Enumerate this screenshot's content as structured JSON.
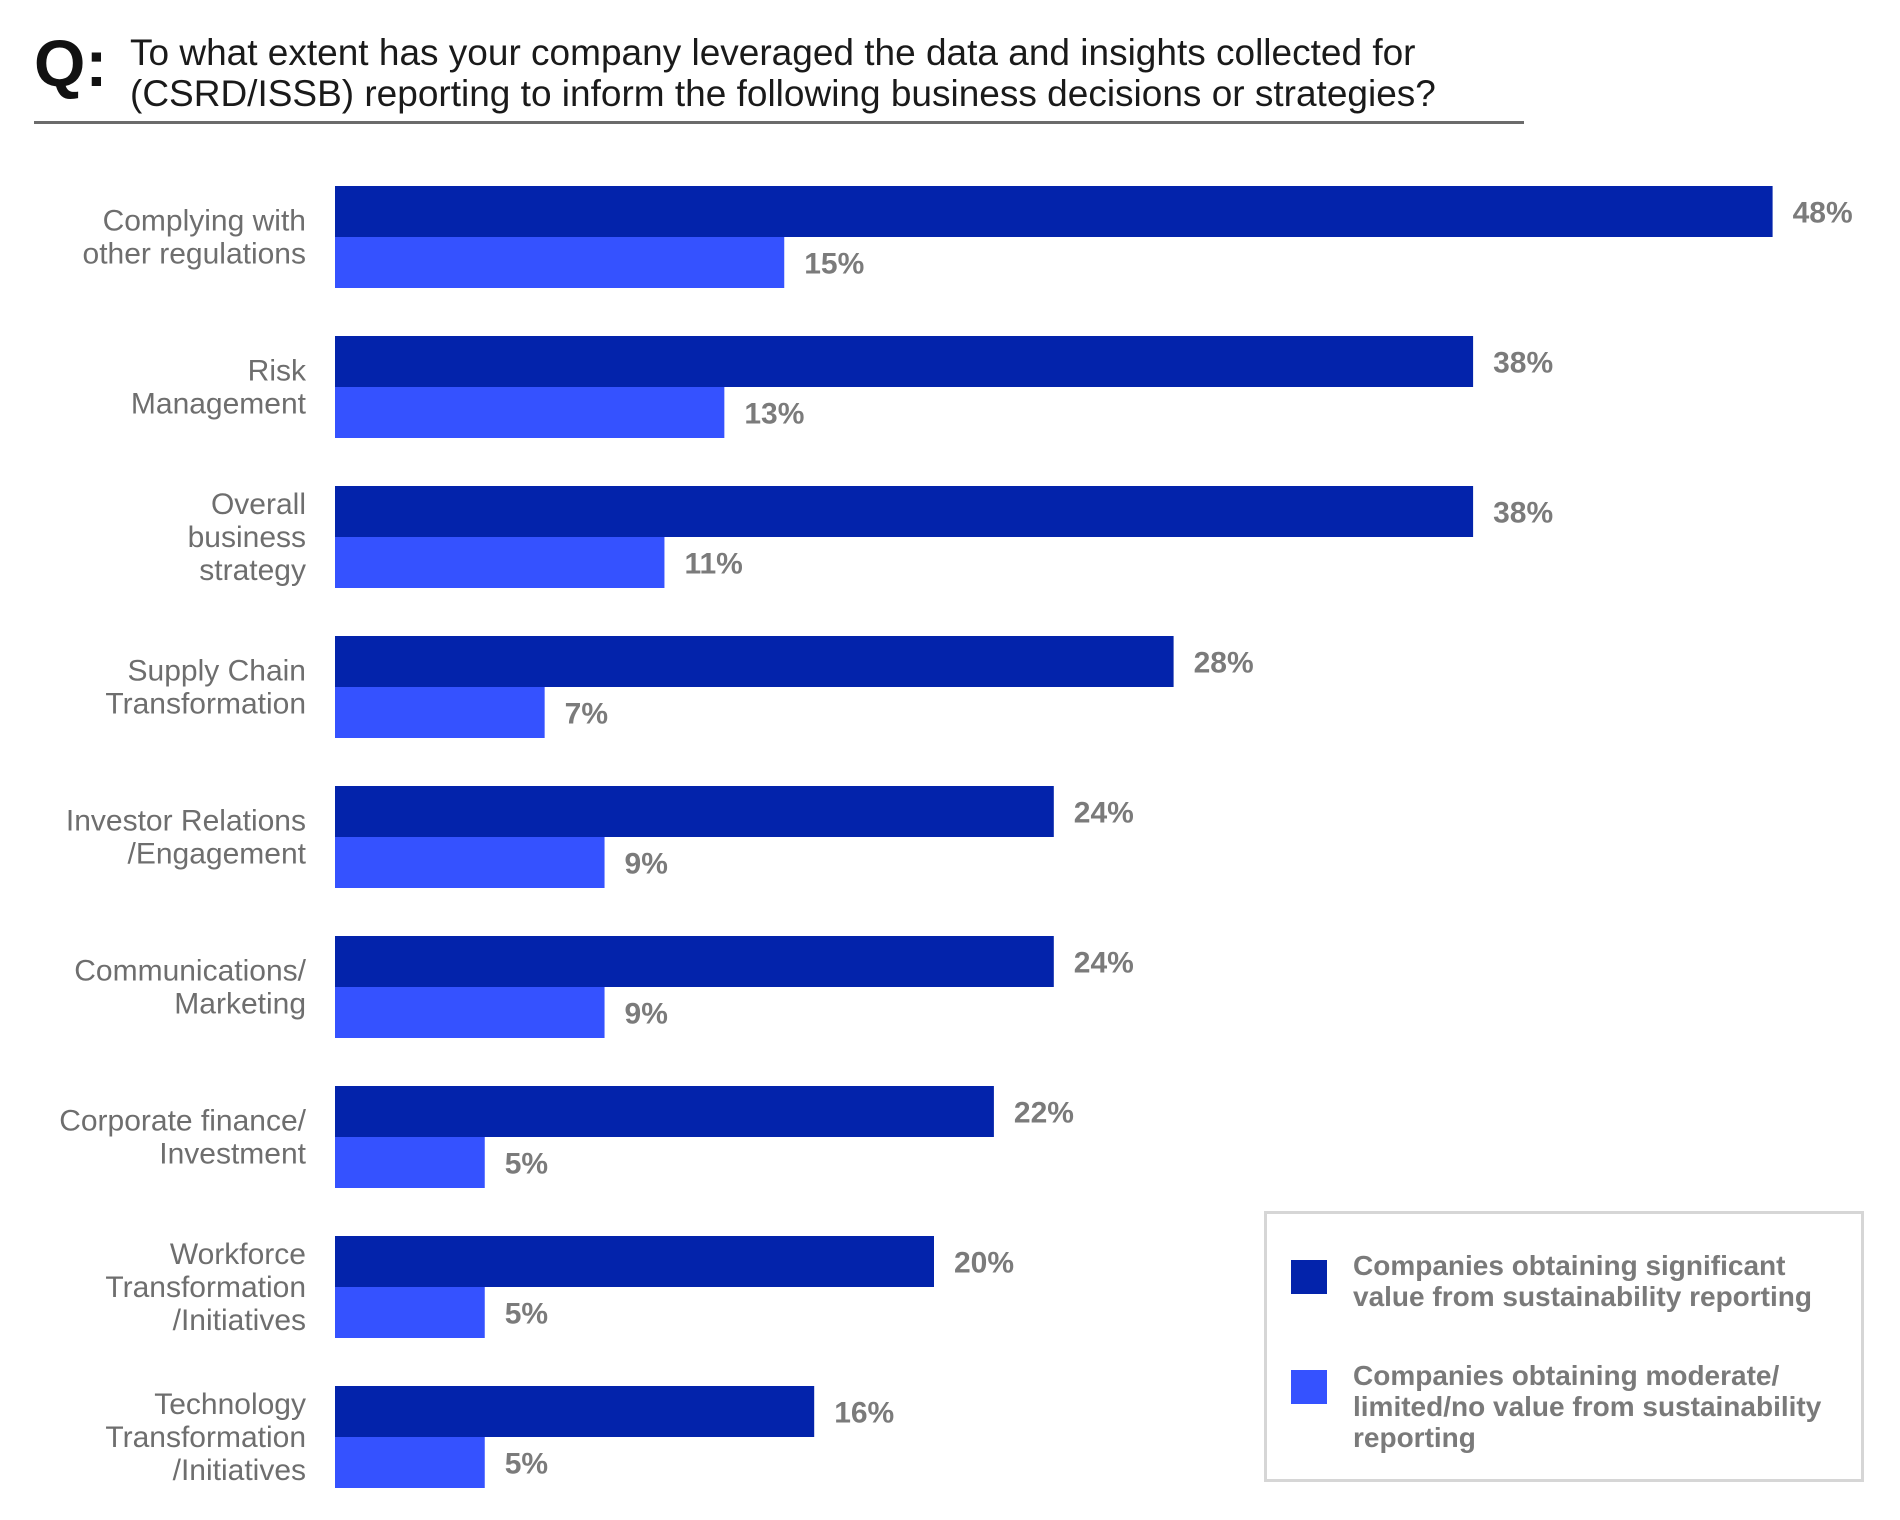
{
  "question": {
    "label": "Q:",
    "text": "To what extent has your company leveraged the data and insights collected for (CSRD/ISSB) reporting to inform the following business decisions or strategies?"
  },
  "colors": {
    "significant": "#0323AB",
    "moderate": "#3552FF",
    "category_text": "#6e6e6e",
    "value_text": "#7b7b7b",
    "rule": "#6b6b6b"
  },
  "chart_data": {
    "type": "bar",
    "orientation": "horizontal",
    "categories": [
      [
        "Complying with",
        "other regulations"
      ],
      [
        "Risk",
        "Management"
      ],
      [
        "Overall",
        "business",
        "strategy"
      ],
      [
        "Supply Chain",
        "Transformation"
      ],
      [
        "Investor Relations",
        "/Engagement"
      ],
      [
        "Communications/",
        "Marketing"
      ],
      [
        "Corporate finance/",
        "Investment"
      ],
      [
        "Workforce",
        "Transformation",
        "/Initiatives"
      ],
      [
        "Technology",
        "Transformation",
        "/Initiatives"
      ]
    ],
    "series": [
      {
        "name": "Companies obtaining significant value from sustainability reporting",
        "values": [
          48,
          38,
          38,
          28,
          24,
          24,
          22,
          20,
          16
        ],
        "labels": [
          "48%",
          "38%",
          "38%",
          "28%",
          "24%",
          "24%",
          "22%",
          "20%",
          "16%"
        ]
      },
      {
        "name": "Companies obtaining moderate/ limited/no value from sustainability reporting",
        "values": [
          15,
          13,
          11,
          7,
          9,
          9,
          5,
          5,
          5
        ],
        "labels": [
          "15%",
          "13%",
          "11%",
          "7%",
          "9%",
          "9%",
          "5%",
          "5%",
          "5%"
        ]
      }
    ],
    "legend_position": "bottom-right",
    "grid": false,
    "xlim": [
      0,
      50
    ]
  }
}
